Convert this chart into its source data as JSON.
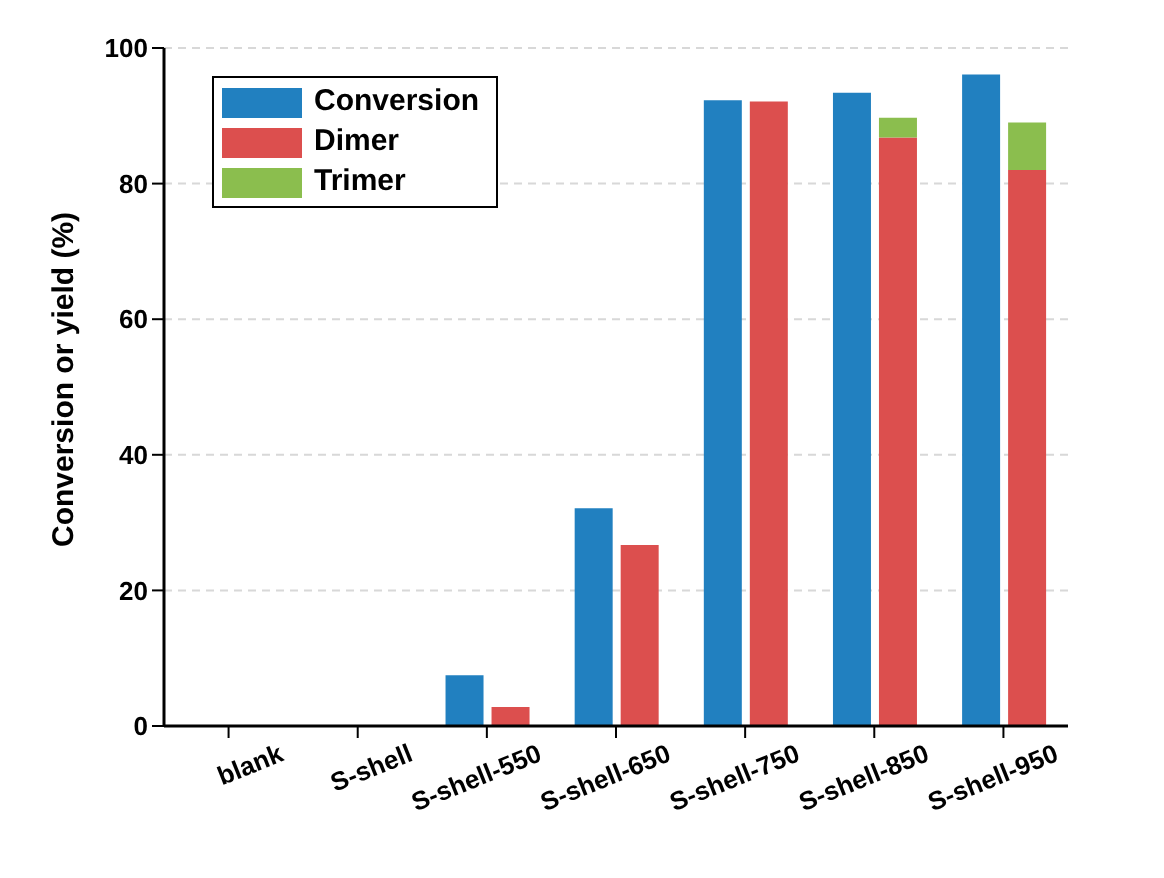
{
  "chart_data": {
    "type": "bar",
    "ylabel": "Conversion or yield (%)",
    "categories": [
      "blank",
      "S-shell",
      "S-shell-550",
      "S-shell-650",
      "S-shell-750",
      "S-shell-850",
      "S-shell-950"
    ],
    "series": [
      {
        "name": "Conversion",
        "color": "#2180c0",
        "values": [
          0,
          0,
          7.5,
          32.1,
          92.3,
          93.4,
          96.1
        ]
      },
      {
        "name": "Dimer",
        "color": "#dc4f4e",
        "values": [
          0,
          0,
          2.8,
          26.7,
          92.1,
          86.8,
          82.0
        ]
      },
      {
        "name": "Trimer",
        "color": "#8bbe4e",
        "base": [
          null,
          null,
          null,
          null,
          null,
          86.8,
          82.0
        ],
        "values": [
          null,
          null,
          null,
          null,
          null,
          2.9,
          7.0
        ]
      }
    ],
    "ylim": [
      0,
      100
    ],
    "yticks": [
      0,
      20,
      40,
      60,
      80,
      100
    ],
    "grid": "y",
    "legend": "top left"
  }
}
